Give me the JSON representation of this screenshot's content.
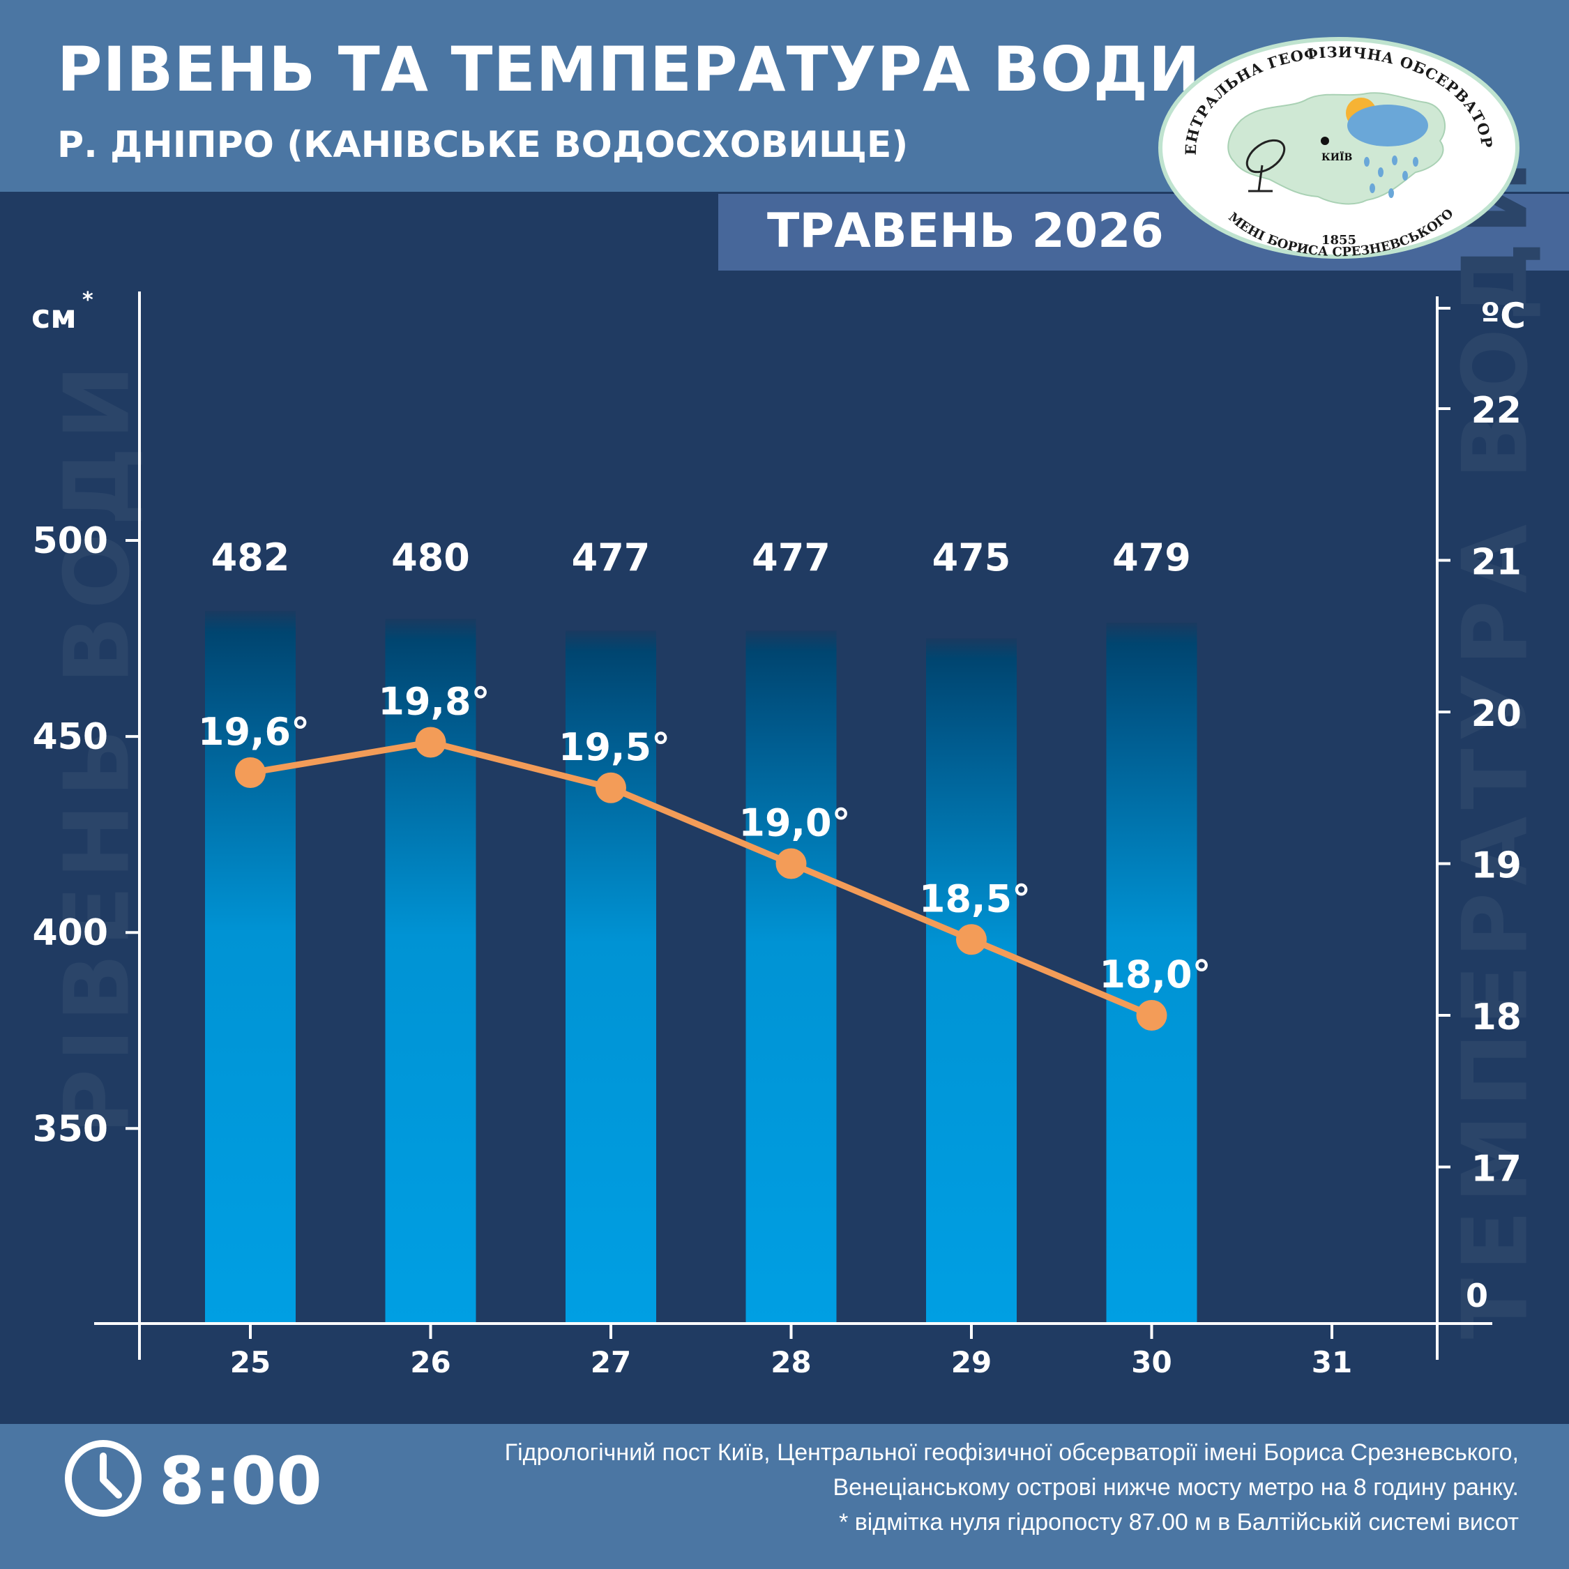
{
  "header": {
    "title": "РІВЕНЬ ТА ТЕМПЕРАТУРА ВОДИ",
    "subtitle": "Р. ДНІПРО (КАНІВСЬКЕ ВОДОСХОВИЩЕ)",
    "month": "ТРАВЕНЬ 2026"
  },
  "logo": {
    "top_text": "ЦЕНТРАЛЬНА ГЕОФІЗИЧНА ОБСЕРВАТОРІЯ",
    "bottom_text": "ІМЕНІ БОРИСА СРЕЗНЕВСЬКОГО",
    "year": "1855",
    "city": "КИЇВ"
  },
  "background_words": {
    "left": "РІВЕНЬ ВОДИ",
    "right": "ТЕМПЕРАТУРА ВОДИ"
  },
  "chart_data": {
    "type": "bar",
    "categories": [
      "25",
      "26",
      "27",
      "28",
      "29",
      "30",
      "31"
    ],
    "series": [
      {
        "type": "bar",
        "values": [
          482,
          480,
          477,
          477,
          475,
          479,
          null
        ],
        "labels": [
          "482",
          "480",
          "477",
          "477",
          "475",
          "479",
          ""
        ]
      },
      {
        "type": "line",
        "values": [
          19.6,
          19.8,
          19.5,
          19.0,
          18.5,
          18.0,
          null
        ],
        "labels": [
          "19,6°",
          "19,8°",
          "19,5°",
          "19,0°",
          "18,5°",
          "18,0°",
          ""
        ]
      }
    ],
    "y_left": {
      "unit": "см",
      "unit_mark": "*",
      "ticks": [
        "350",
        "400",
        "450",
        "500"
      ]
    },
    "y_right": {
      "unit": "ºC",
      "ticks": [
        "17",
        "18",
        "19",
        "20",
        "21",
        "22"
      ],
      "zero_label": "0"
    },
    "colors": {
      "bar_bottom": "#009fe3",
      "bar_top": "#003f6b",
      "line": "#f39c58",
      "axis": "#ffffff"
    }
  },
  "footer": {
    "time": "8:00",
    "note_lines": [
      "Гідрологічний пост Київ, Центральної геофізичної обсерваторії імені Бориса Срезневського,",
      "Венеціанському острові нижче мосту метро  на 8 годину ранку.",
      "* відмітка нуля гідропосту 87.00 м в Балтійській системі висот"
    ]
  }
}
